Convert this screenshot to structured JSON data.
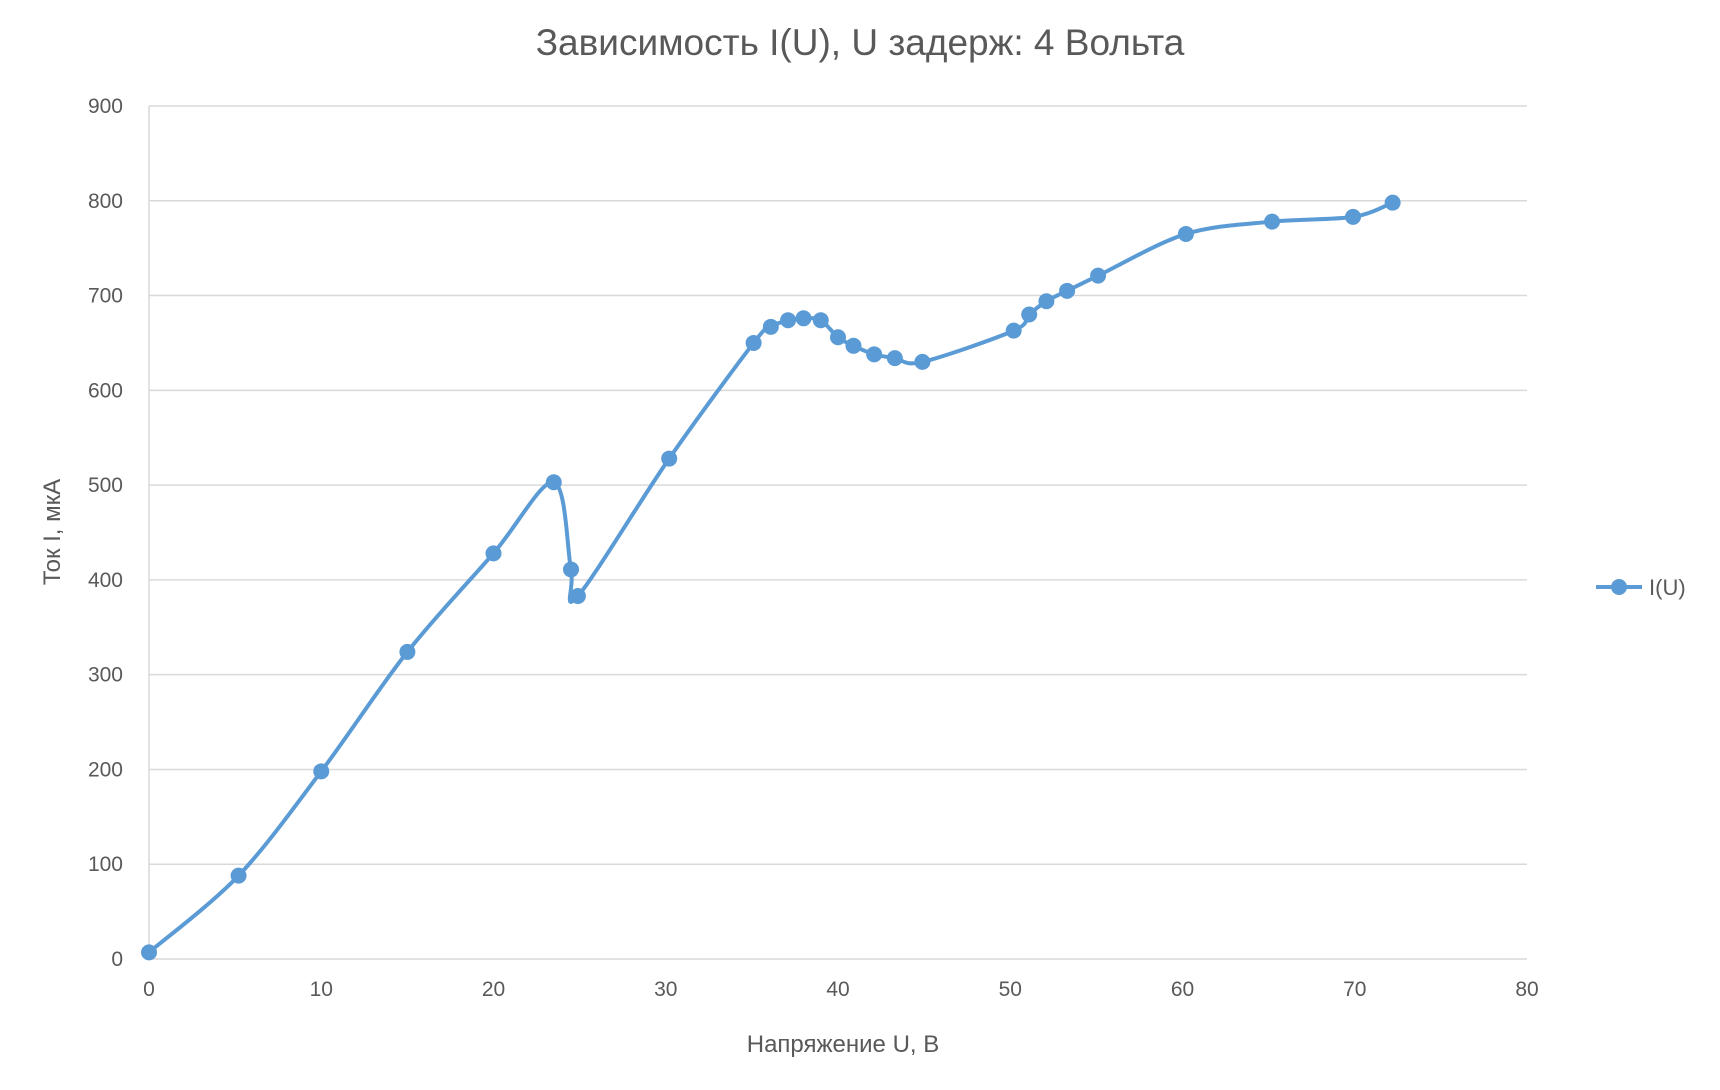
{
  "chart_data": {
    "type": "line",
    "title": "Зависимость I(U), U задерж: 4 Вольта",
    "xlabel": "Напряжение U, В",
    "ylabel": "Ток I, мкА",
    "xlim": [
      0,
      80
    ],
    "ylim": [
      0,
      900
    ],
    "xticks": [
      0,
      10,
      20,
      30,
      40,
      50,
      60,
      70,
      80
    ],
    "yticks": [
      0,
      100,
      200,
      300,
      400,
      500,
      600,
      700,
      800,
      900
    ],
    "grid": "horizontal",
    "legend_position": "right",
    "smooth": true,
    "series": [
      {
        "name": "I(U)",
        "color": "#5B9BD5",
        "points": [
          [
            0,
            7
          ],
          [
            5.2,
            88
          ],
          [
            10,
            198
          ],
          [
            15,
            324
          ],
          [
            20,
            428
          ],
          [
            23.5,
            503
          ],
          [
            24.5,
            411
          ],
          [
            24.9,
            383
          ],
          [
            30.2,
            528
          ],
          [
            35.1,
            650
          ],
          [
            36.1,
            667
          ],
          [
            37.1,
            674
          ],
          [
            38,
            676
          ],
          [
            39,
            674
          ],
          [
            40,
            656
          ],
          [
            40.9,
            647
          ],
          [
            42.1,
            638
          ],
          [
            43.3,
            634
          ],
          [
            44.9,
            630
          ],
          [
            50.2,
            663
          ],
          [
            51.1,
            680
          ],
          [
            52.1,
            694
          ],
          [
            53.3,
            705
          ],
          [
            55.1,
            721
          ],
          [
            60.2,
            765
          ],
          [
            65.2,
            778
          ],
          [
            69.9,
            783
          ],
          [
            72.2,
            798
          ]
        ]
      }
    ]
  }
}
